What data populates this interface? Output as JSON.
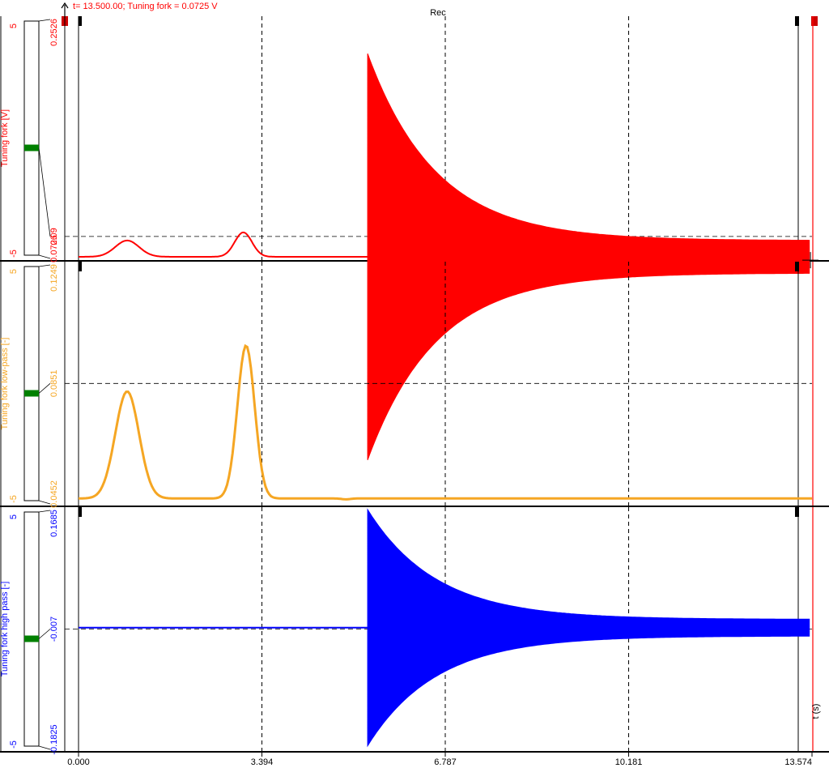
{
  "header": {
    "cursor_readout": "t= 13.500.00; Tuning fork = 0.0725 V",
    "recorder_label": "Rec"
  },
  "time_axis": {
    "unit_label": "t (s)"
  },
  "colors": {
    "channel_1": "#ff0000",
    "channel_2": "#f5a623",
    "channel_3": "#0000ff",
    "grid": "#000000",
    "cursor": "#ff0000",
    "indicator_green": "#008000"
  },
  "chart_data": [
    {
      "type": "line",
      "series": [
        {
          "name": "Tuning fork [V]",
          "color": "#ff0000"
        }
      ],
      "ylabel": "Tuning fork [V]",
      "xlabel": "t (s)",
      "xlim": [
        0.0,
        13.574
      ],
      "x_ticks": [
        "0.000",
        "3.394",
        "6.787",
        "10.181",
        "13.574"
      ],
      "ylim": [
        0.0726,
        0.2526
      ],
      "y_ticks": [
        "0.2526",
        "0.09",
        "0.0726"
      ],
      "y_tick_values": [
        0.2526,
        0.09,
        0.0726
      ],
      "bar_scale": [
        "5",
        "-5"
      ],
      "reference_level": 0.09,
      "baseline": 0.075,
      "bumps": [
        {
          "t": 0.9,
          "peak": 0.087
        },
        {
          "t": 3.05,
          "peak": 0.093
        }
      ],
      "impulse_t": 5.35,
      "impulse_amplitude": 0.15,
      "end_envelope": 0.012,
      "cursor_t": 13.5,
      "cursor_value": 0.0725,
      "grid": true
    },
    {
      "type": "line",
      "series": [
        {
          "name": "Tuning fork low-pass [-]",
          "color": "#f5a623"
        }
      ],
      "ylabel": "Tuning fork low-pass [-]",
      "xlabel": "t (s)",
      "xlim": [
        0.0,
        13.574
      ],
      "ylim": [
        0.0452,
        0.1249
      ],
      "y_ticks": [
        "0.1249",
        "0.0851",
        "0.0452"
      ],
      "y_tick_values": [
        0.1249,
        0.0851,
        0.0452
      ],
      "bar_scale": [
        "5",
        "-5"
      ],
      "reference_level": 0.0851,
      "baseline": 0.0475,
      "bumps": [
        {
          "t": 0.9,
          "peak": 0.0825
        },
        {
          "t": 3.1,
          "peak": 0.0975
        }
      ],
      "grid": true
    },
    {
      "type": "line",
      "series": [
        {
          "name": "Tuning fork high pass [-]",
          "color": "#0000ff"
        }
      ],
      "ylabel": "Tuning fork high pass [-]",
      "xlabel": "t (s)",
      "xlim": [
        0.0,
        13.574
      ],
      "ylim": [
        -0.1825,
        0.1685
      ],
      "y_ticks": [
        "0.1685",
        "-0.007",
        "-0.1825"
      ],
      "y_tick_values": [
        0.1685,
        -0.007,
        -0.1825
      ],
      "bar_scale": [
        "5",
        "-5"
      ],
      "reference_level": -0.007,
      "baseline": -0.005,
      "impulse_t": 5.35,
      "impulse_amplitude": 0.17,
      "end_envelope": 0.012,
      "grid": true
    }
  ]
}
